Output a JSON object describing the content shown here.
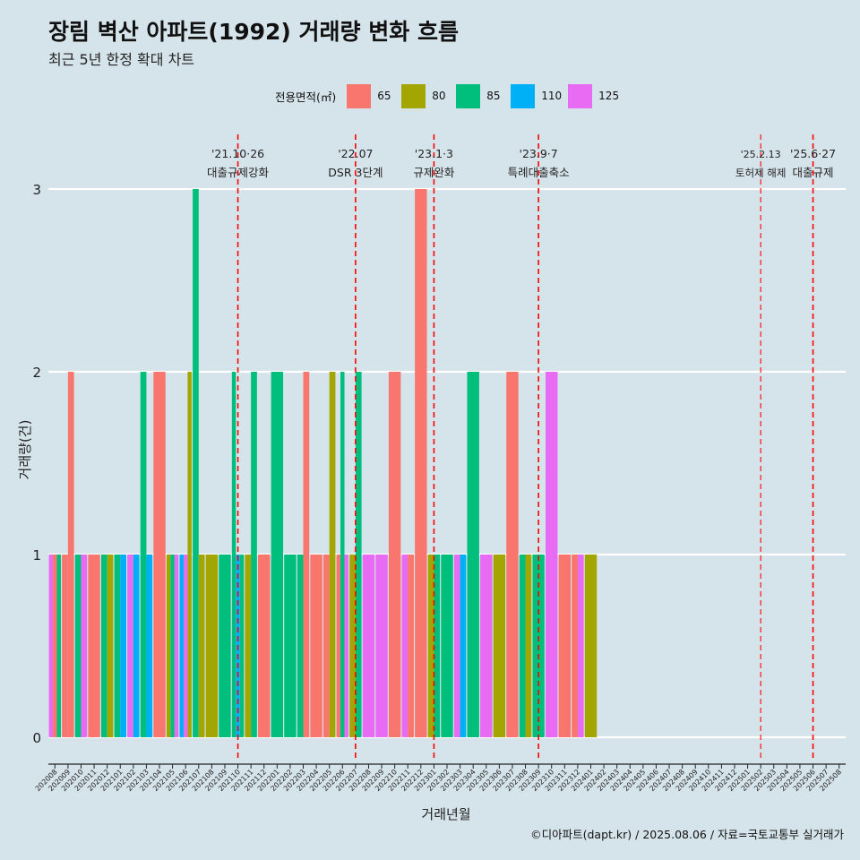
{
  "header": {
    "title": "장림 벽산 아파트(1992) 거래량 변화 흐름",
    "subtitle": "최근 5년 한정 확대 차트"
  },
  "caption": "©디아파트(dapt.kr) / 2025.08.06 / 자료=국토교통부 실거래가",
  "chart_data": {
    "type": "bar",
    "title": "장림 벽산 아파트(1992) 거래량 변화 흐름",
    "subtitle": "최근 5년 한정 확대 차트",
    "xlabel": "거래년월",
    "ylabel": "거래량(건)",
    "ylim": [
      -0.13,
      3.3
    ],
    "yticks": [
      0,
      1,
      2,
      3
    ],
    "grid": true,
    "legend": {
      "title": "전용면적(㎡)",
      "position": "top"
    },
    "series": [
      {
        "name": "65",
        "color": "#F8766D"
      },
      {
        "name": "80",
        "color": "#A3A500"
      },
      {
        "name": "85",
        "color": "#00BF7D"
      },
      {
        "name": "110",
        "color": "#00B0F6"
      },
      {
        "name": "125",
        "color": "#E76BF3"
      }
    ],
    "categories": [
      "202008",
      "202009",
      "202010",
      "202011",
      "202012",
      "202101",
      "202102",
      "202103",
      "202104",
      "202105",
      "202106",
      "202107",
      "202108",
      "202109",
      "202110",
      "202111",
      "202112",
      "202201",
      "202202",
      "202203",
      "202204",
      "202205",
      "202206",
      "202207",
      "202208",
      "202209",
      "202210",
      "202211",
      "202212",
      "202301",
      "202302",
      "202303",
      "202304",
      "202305",
      "202306",
      "202307",
      "202308",
      "202309",
      "202310",
      "202311",
      "202312",
      "202401",
      "202402",
      "202403",
      "202404",
      "202405",
      "202406",
      "202407",
      "202408",
      "202409",
      "202410",
      "202411",
      "202412",
      "202501",
      "202502",
      "202503",
      "202504",
      "202505",
      "202506",
      "202507",
      "202508"
    ],
    "bars": [
      {
        "month": "202008",
        "series": [
          "125",
          "65",
          "85"
        ],
        "values": [
          1,
          1,
          1
        ]
      },
      {
        "month": "202009",
        "series": [
          "65",
          "65"
        ],
        "values": [
          1,
          2
        ]
      },
      {
        "month": "202010",
        "series": [
          "85",
          "125"
        ],
        "values": [
          1,
          1
        ]
      },
      {
        "month": "202011",
        "series": [
          "65"
        ],
        "values": [
          1
        ]
      },
      {
        "month": "202012",
        "series": [
          "85",
          "80"
        ],
        "values": [
          1,
          1
        ]
      },
      {
        "month": "202101",
        "series": [
          "85",
          "110"
        ],
        "values": [
          1,
          1
        ]
      },
      {
        "month": "202102",
        "series": [
          "125",
          "110"
        ],
        "values": [
          1,
          1
        ]
      },
      {
        "month": "202103",
        "series": [
          "85",
          "110"
        ],
        "values": [
          2,
          1
        ]
      },
      {
        "month": "202104",
        "series": [
          "65"
        ],
        "values": [
          2
        ]
      },
      {
        "month": "202105",
        "series": [
          "80",
          "85",
          "125"
        ],
        "values": [
          1,
          1,
          1
        ]
      },
      {
        "month": "202106",
        "series": [
          "110",
          "125",
          "80"
        ],
        "values": [
          1,
          1,
          2
        ]
      },
      {
        "month": "202107",
        "series": [
          "85",
          "80"
        ],
        "values": [
          3,
          1
        ]
      },
      {
        "month": "202108",
        "series": [
          "80"
        ],
        "values": [
          1
        ]
      },
      {
        "month": "202109",
        "series": [
          "85"
        ],
        "values": [
          1
        ]
      },
      {
        "month": "202110",
        "series": [
          "85",
          "110",
          "85"
        ],
        "values": [
          2,
          1,
          1
        ]
      },
      {
        "month": "202111",
        "series": [
          "80",
          "85"
        ],
        "values": [
          1,
          2
        ]
      },
      {
        "month": "202112",
        "series": [
          "65"
        ],
        "values": [
          1
        ]
      },
      {
        "month": "202201",
        "series": [
          "85"
        ],
        "values": [
          2
        ]
      },
      {
        "month": "202202",
        "series": [
          "85"
        ],
        "values": [
          1
        ]
      },
      {
        "month": "202203",
        "series": [
          "85",
          "65"
        ],
        "values": [
          1,
          2
        ]
      },
      {
        "month": "202204",
        "series": [
          "65"
        ],
        "values": [
          1
        ]
      },
      {
        "month": "202205",
        "series": [
          "65",
          "80"
        ],
        "values": [
          1,
          2
        ]
      },
      {
        "month": "202206",
        "series": [
          "65",
          "85",
          "125"
        ],
        "values": [
          1,
          2,
          1
        ]
      },
      {
        "month": "202207",
        "series": [
          "80",
          "85"
        ],
        "values": [
          1,
          2
        ]
      },
      {
        "month": "202208",
        "series": [
          "125"
        ],
        "values": [
          1
        ]
      },
      {
        "month": "202209",
        "series": [
          "125"
        ],
        "values": [
          1
        ]
      },
      {
        "month": "202210",
        "series": [
          "65"
        ],
        "values": [
          2
        ]
      },
      {
        "month": "202211",
        "series": [
          "125",
          "65"
        ],
        "values": [
          1,
          1
        ]
      },
      {
        "month": "202212",
        "series": [
          "65"
        ],
        "values": [
          3
        ]
      },
      {
        "month": "202301",
        "series": [
          "80",
          "85"
        ],
        "values": [
          1,
          1
        ]
      },
      {
        "month": "202302",
        "series": [
          "85"
        ],
        "values": [
          1
        ]
      },
      {
        "month": "202303",
        "series": [
          "125",
          "110"
        ],
        "values": [
          1,
          1
        ]
      },
      {
        "month": "202304",
        "series": [
          "85"
        ],
        "values": [
          2
        ]
      },
      {
        "month": "202305",
        "series": [
          "125"
        ],
        "values": [
          1
        ]
      },
      {
        "month": "202306",
        "series": [
          "80"
        ],
        "values": [
          1
        ]
      },
      {
        "month": "202307",
        "series": [
          "65"
        ],
        "values": [
          2
        ]
      },
      {
        "month": "202308",
        "series": [
          "85",
          "80"
        ],
        "values": [
          1,
          1
        ]
      },
      {
        "month": "202309",
        "series": [
          "85"
        ],
        "values": [
          1
        ]
      },
      {
        "month": "202310",
        "series": [
          "125"
        ],
        "values": [
          2
        ]
      },
      {
        "month": "202311",
        "series": [
          "65"
        ],
        "values": [
          1
        ]
      },
      {
        "month": "202312",
        "series": [
          "65",
          "125"
        ],
        "values": [
          1,
          1
        ]
      },
      {
        "month": "202401",
        "series": [
          "80"
        ],
        "values": [
          1
        ]
      }
    ],
    "annotations": [
      {
        "date": "'21.10·26",
        "text": "대출규제강화"
      },
      {
        "date": "'22.07",
        "text": "DSR 3단계"
      },
      {
        "date": "'23.1·3",
        "text": "규제완화"
      },
      {
        "date": "'23.9·7",
        "text": "특례대출축소"
      },
      {
        "date": "'25.2.13",
        "text": "토허제 해제"
      },
      {
        "date": "'25.6·27",
        "text": "대출규제"
      }
    ]
  }
}
